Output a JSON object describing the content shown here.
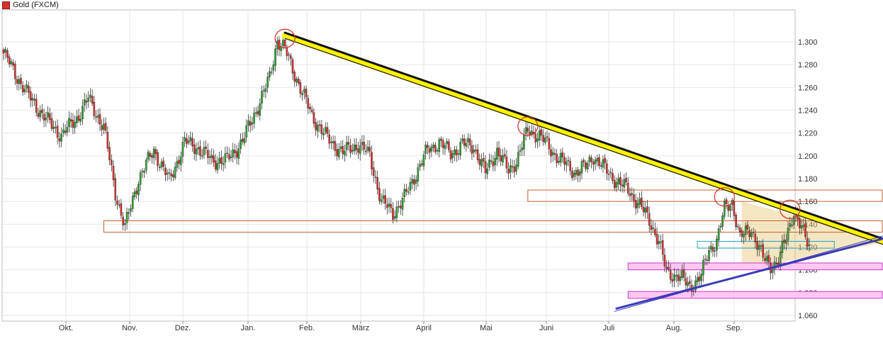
{
  "legend": {
    "label": "Gold (FXCM)",
    "color": "#d9302b"
  },
  "chart_data": {
    "type": "candlestick",
    "title": "",
    "series": [
      {
        "name": "Gold (FXCM)"
      }
    ],
    "x_ticks": [
      "Okt.",
      "Nov.",
      "Dez.",
      "Jan.",
      "Feb.",
      "März",
      "April",
      "Mai",
      "Juni",
      "Juli",
      "Aug.",
      "Sep."
    ],
    "y_ticks": [
      "1.300",
      "1.280",
      "1.260",
      "1.240",
      "1.220",
      "1.200",
      "1.180",
      "1.160",
      "1.140",
      "1.120",
      "1.100",
      "1.080",
      "1.060"
    ],
    "ylim": [
      1.055,
      1.328
    ],
    "grid": true,
    "up_color": "#2fa02f",
    "down_color": "#d9302b",
    "anchors": [
      [
        0,
        1.29
      ],
      [
        12,
        1.255
      ],
      [
        22,
        1.232
      ],
      [
        30,
        1.218
      ],
      [
        38,
        1.233
      ],
      [
        44,
        1.25
      ],
      [
        52,
        1.225
      ],
      [
        58,
        1.168
      ],
      [
        63,
        1.137
      ],
      [
        70,
        1.18
      ],
      [
        78,
        1.205
      ],
      [
        86,
        1.178
      ],
      [
        94,
        1.212
      ],
      [
        100,
        1.208
      ],
      [
        108,
        1.196
      ],
      [
        116,
        1.196
      ],
      [
        124,
        1.213
      ],
      [
        130,
        1.236
      ],
      [
        138,
        1.268
      ],
      [
        142,
        1.302
      ],
      [
        146,
        1.293
      ],
      [
        150,
        1.276
      ],
      [
        160,
        1.235
      ],
      [
        168,
        1.215
      ],
      [
        176,
        1.203
      ],
      [
        184,
        1.21
      ],
      [
        190,
        1.2
      ],
      [
        196,
        1.16
      ],
      [
        202,
        1.15
      ],
      [
        208,
        1.163
      ],
      [
        214,
        1.185
      ],
      [
        220,
        1.205
      ],
      [
        226,
        1.212
      ],
      [
        232,
        1.202
      ],
      [
        238,
        1.21
      ],
      [
        244,
        1.208
      ],
      [
        250,
        1.185
      ],
      [
        256,
        1.205
      ],
      [
        262,
        1.186
      ],
      [
        266,
        1.196
      ],
      [
        272,
        1.222
      ],
      [
        278,
        1.218
      ],
      [
        284,
        1.205
      ],
      [
        290,
        1.195
      ],
      [
        296,
        1.186
      ],
      [
        302,
        1.19
      ],
      [
        306,
        1.2
      ],
      [
        312,
        1.188
      ],
      [
        318,
        1.178
      ],
      [
        324,
        1.17
      ],
      [
        330,
        1.157
      ],
      [
        336,
        1.14
      ],
      [
        340,
        1.125
      ],
      [
        344,
        1.097
      ],
      [
        350,
        1.095
      ],
      [
        356,
        1.085
      ],
      [
        362,
        1.095
      ],
      [
        366,
        1.117
      ],
      [
        370,
        1.126
      ],
      [
        374,
        1.153
      ],
      [
        378,
        1.16
      ],
      [
        382,
        1.128
      ],
      [
        388,
        1.136
      ],
      [
        394,
        1.11
      ],
      [
        398,
        1.104
      ],
      [
        402,
        1.107
      ],
      [
        406,
        1.128
      ],
      [
        410,
        1.152
      ],
      [
        414,
        1.135
      ],
      [
        418,
        1.121
      ]
    ],
    "trendlines": [
      {
        "name": "resistance",
        "color": "#111111",
        "highlight": "#fff200",
        "from": [
          146,
          1.308
        ],
        "to": [
          460,
          1.125
        ]
      },
      {
        "name": "support",
        "color": "#3a3ab8",
        "from": [
          318,
          1.066
        ],
        "to": [
          460,
          1.129
        ]
      }
    ],
    "zones": [
      {
        "name": "range-1",
        "color": "#c0622a",
        "fill": "rgba(255,255,255,0)",
        "from_x": 52,
        "to_x": 460,
        "y_low": 1.133,
        "y_high": 1.143
      },
      {
        "name": "range-2",
        "color": "#c0622a",
        "fill": "rgba(255,255,255,0)",
        "from_x": 272,
        "to_x": 460,
        "y_low": 1.16,
        "y_high": 1.17
      },
      {
        "name": "support-zone-1",
        "color": "#cc33cc",
        "fill": "#ffc8f3",
        "from_x": 324,
        "to_x": 460,
        "y_low": 1.1,
        "y_high": 1.106
      },
      {
        "name": "support-zone-2",
        "color": "#cc33cc",
        "fill": "#ffc8f3",
        "from_x": 324,
        "to_x": 460,
        "y_low": 1.075,
        "y_high": 1.081
      },
      {
        "name": "small-range",
        "color": "#2a9ec0",
        "fill": "rgba(255,255,255,0)",
        "from_x": 360,
        "to_x": 431,
        "y_low": 1.119,
        "y_high": 1.125
      }
    ],
    "triangle": {
      "fill": "rgba(230,200,120,0.45)",
      "points": [
        [
          383,
          1.16
        ],
        [
          460,
          1.125
        ],
        [
          383,
          1.1
        ]
      ]
    },
    "pivot_circles": [
      [
        146,
        1.303
      ],
      [
        272,
        1.226
      ],
      [
        374,
        1.164
      ],
      [
        408,
        1.153
      ]
    ]
  }
}
